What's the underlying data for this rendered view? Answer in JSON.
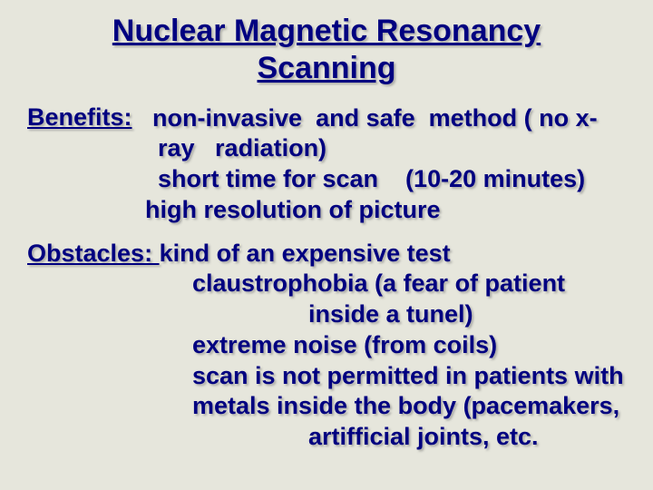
{
  "title_line1": "Nuclear Magnetic Resonancy",
  "title_line2": "Scanning",
  "title_fontsize": "34px",
  "label_fontsize": "27px",
  "body_fontsize": "27px",
  "benefits": {
    "label": "Benefits:",
    "line1": "   non-invasive  and safe  method ( no x-",
    "line2": "ray   radiation)",
    "line3": "short time for scan    (10-20 minutes)",
    "line4": "high resolution of picture",
    "label_width": "120px",
    "body_indent": "144px",
    "line4_indent": "130px"
  },
  "obstacles": {
    "label": "Obstacles: ",
    "line1_rest": "kind of an expensive test",
    "line2": "claustrophobia (a fear of patient",
    "line3": "inside a tunel)",
    "line4": "extreme noise (from coils)",
    "line5": "scan is not permitted in patients with",
    "line6": "metals inside the body (pacemakers,",
    "line7": "artifficial joints, etc.",
    "body_indent": "182px",
    "line3_indent": "310px",
    "line7_indent": "310px"
  },
  "colors": {
    "bg": "#e6e6dc",
    "text": "#000080"
  }
}
